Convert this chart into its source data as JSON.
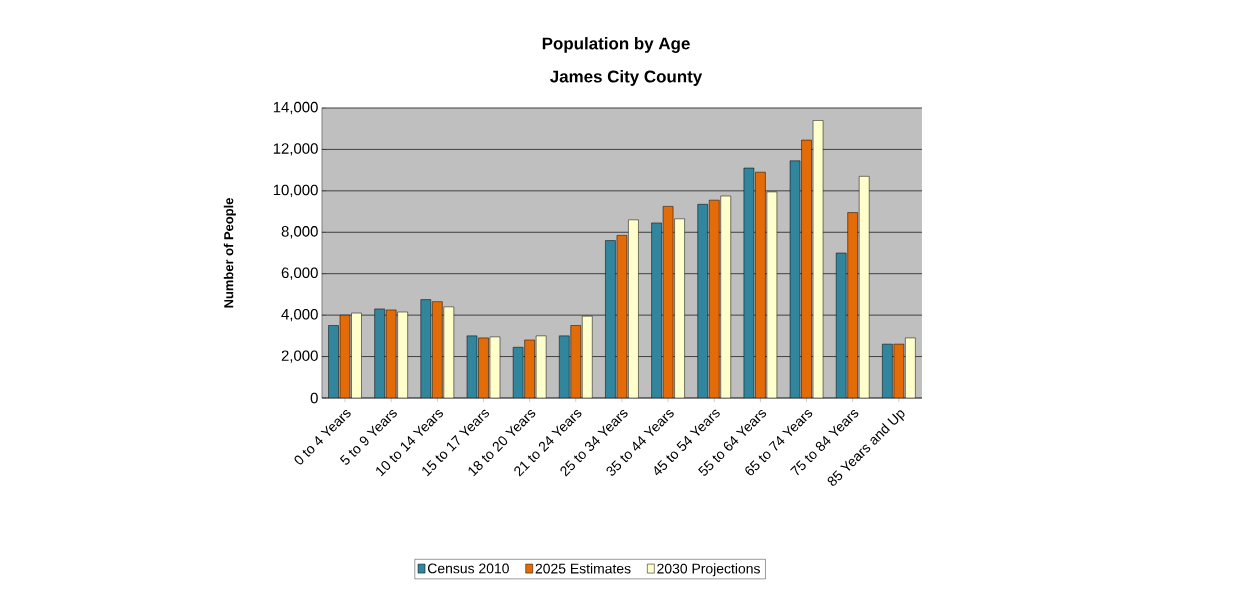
{
  "chart_data": {
    "type": "bar",
    "title": "Population by Age",
    "subtitle": "James City County",
    "ylabel": "Number of People",
    "categories": [
      "0 to 4 Years",
      "5 to 9 Years",
      "10 to 14 Years",
      "15 to 17 Years",
      "18 to 20 Years",
      "21 to 24 Years",
      "25 to 34 Years",
      "35 to 44 Years",
      "45 to 54 Years",
      "55 to 64 Years",
      "65 to 74 Years",
      "75 to 84 Years",
      "85 Years and Up"
    ],
    "series": [
      {
        "name": "Census 2010",
        "color": "#31859c",
        "values": [
          3500,
          4300,
          4750,
          3000,
          2450,
          3000,
          7600,
          8450,
          9350,
          11100,
          11450,
          7000,
          2600
        ]
      },
      {
        "name": "2025 Estimates",
        "color": "#e36c09",
        "values": [
          4000,
          4250,
          4650,
          2900,
          2800,
          3500,
          7850,
          9250,
          9550,
          10900,
          12450,
          8950,
          2600
        ]
      },
      {
        "name": "2030 Projections",
        "color": "#ffffcc",
        "values": [
          4100,
          4150,
          4400,
          2950,
          3000,
          3950,
          8600,
          8650,
          9750,
          9950,
          13400,
          10700,
          2900
        ]
      }
    ],
    "ylim": [
      0,
      14000
    ],
    "yticks": [
      {
        "value": 0,
        "label": "0"
      },
      {
        "value": 2000,
        "label": "2,000"
      },
      {
        "value": 4000,
        "label": "4,000"
      },
      {
        "value": 6000,
        "label": "6,000"
      },
      {
        "value": 8000,
        "label": "8,000"
      },
      {
        "value": 10000,
        "label": "10,000"
      },
      {
        "value": 12000,
        "label": "12,000"
      },
      {
        "value": 14000,
        "label": "14,000"
      }
    ],
    "grid": "y",
    "legend": "bottom"
  }
}
